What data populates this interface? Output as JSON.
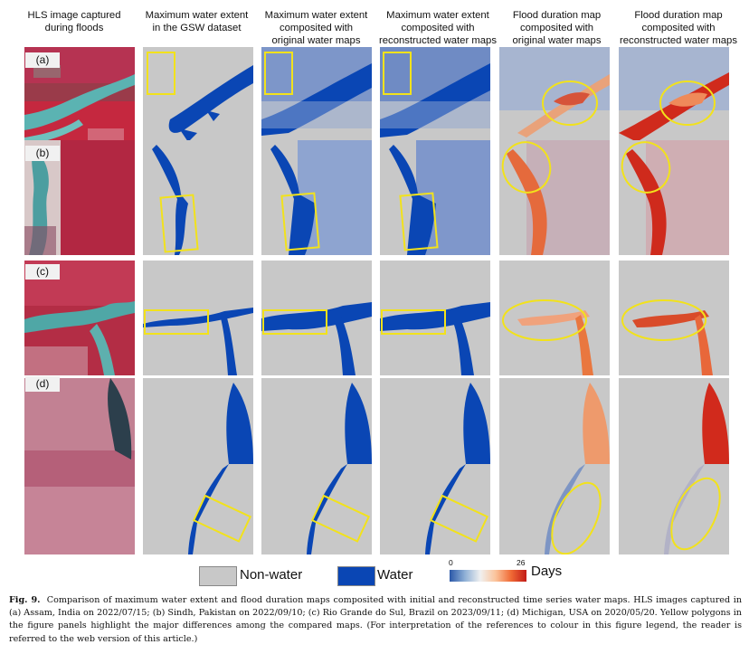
{
  "columns": [
    {
      "header": "HLS image captured\nduring floods"
    },
    {
      "header": "Maximum water extent\nin the GSW dataset"
    },
    {
      "header": "Maximum water extent\ncomposited with\noriginal water maps"
    },
    {
      "header": "Maximum water extent\ncomposited with\nreconstructed water maps"
    },
    {
      "header": "Flood duration map\ncomposited with\noriginal water maps"
    },
    {
      "header": "Flood duration map\ncomposited with\nreconstructed water maps"
    }
  ],
  "rows": [
    {
      "label": "(a)"
    },
    {
      "label": "(b)"
    },
    {
      "label": "(c)"
    },
    {
      "label": "(d)"
    }
  ],
  "legend": {
    "nonwater_label": "Non-water",
    "water_label": "Water",
    "colorbar_min": "0",
    "colorbar_max": "26",
    "days_label": "Days",
    "nonwater_color": "#c8c8c8",
    "water_color": "#0a46b4"
  },
  "caption": {
    "fig_label": "Fig. 9.",
    "text": "Comparison of maximum water extent and flood duration maps composited with initial and reconstructed time series water maps. HLS images captured in (a) Assam, India on 2022/07/15; (b) Sindh, Pakistan on 2022/09/10; (c) Rio Grande do Sul, Brazil on 2023/09/11; (d) Michigan, USA on 2020/05/20. Yellow polygons in the figure panels highlight the major differences among the compared maps. (For interpretation of the references to colour in this figure legend, the reader is referred to the web version of this article.)"
  },
  "colors": {
    "highlight": "#f2e21b",
    "duration_low": "#2b58a8",
    "duration_high": "#c21b17",
    "hls_red": "#b3253f",
    "hls_teal": "#4fa7a6"
  }
}
